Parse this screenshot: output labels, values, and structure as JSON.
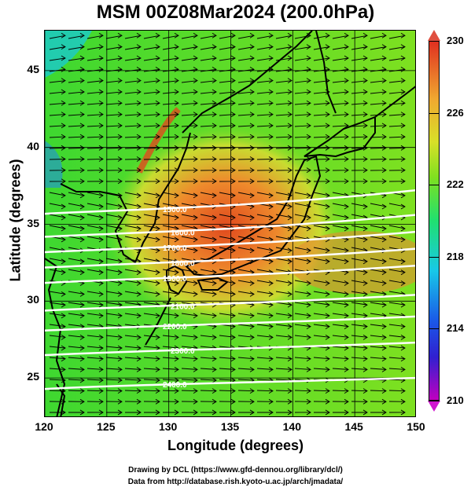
{
  "title": "MSM 00Z08Mar2024 (200.0hPa)",
  "axes": {
    "xlabel": "Longitude (degrees)",
    "ylabel": "Latitude  (degrees)",
    "xticks": [
      "120",
      "125",
      "130",
      "135",
      "140",
      "145",
      "150"
    ],
    "yticks": [
      "25",
      "30",
      "35",
      "40",
      "45"
    ],
    "xlim": [
      120,
      150
    ],
    "ylim": [
      22.4,
      47.6
    ]
  },
  "colorbar": {
    "ticks": [
      "230",
      "226",
      "222",
      "218",
      "214",
      "210"
    ],
    "range": [
      210,
      230
    ]
  },
  "contours": [
    {
      "label": "1500.0",
      "lat": 36.3
    },
    {
      "label": "1600.0",
      "lat": 34.8
    },
    {
      "label": "1700.0",
      "lat": 33.8
    },
    {
      "label": "1800.0",
      "lat": 32.8
    },
    {
      "label": "1900.0",
      "lat": 31.8
    },
    {
      "label": "2100.0",
      "lat": 30.0
    },
    {
      "label": "2200.0",
      "lat": 28.7
    },
    {
      "label": "2300.0",
      "lat": 27.1
    },
    {
      "label": "2400.0",
      "lat": 24.9
    }
  ],
  "credits": {
    "line1": "Drawing by DCL (https://www.gfd-dennou.org/library/dcl/)",
    "line2": "Data from http://database.rish.kyoto-u.ac.jp/arch/jmadata/"
  },
  "colors": {
    "background_field": "#4cd820",
    "warm_core": "#e05a20",
    "contour": "#ffffff",
    "coast": "#000000"
  }
}
